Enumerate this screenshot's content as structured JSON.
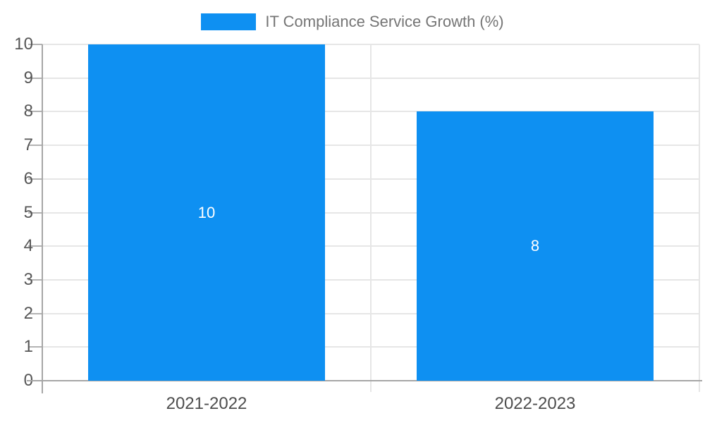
{
  "legend": {
    "label": "IT Compliance Service Growth (%)"
  },
  "chart_data": {
    "type": "bar",
    "title": "IT Compliance Service Growth (%)",
    "categories": [
      "2021-2022",
      "2022-2023"
    ],
    "values": [
      10,
      8
    ],
    "bar_labels": [
      "10",
      "8"
    ],
    "xlabel": "",
    "ylabel": "",
    "ylim": [
      0,
      10
    ],
    "yticks": [
      0,
      1,
      2,
      3,
      4,
      5,
      6,
      7,
      8,
      9,
      10
    ],
    "grid": true,
    "legend_position": "top-center",
    "colors": {
      "bar": "#0e90f2",
      "bar_label": "#ffffff",
      "legend_text": "#757575",
      "axis_line": "#a6a6a6",
      "gridline": "#e6e6e6",
      "tick_text": "#565656"
    }
  }
}
